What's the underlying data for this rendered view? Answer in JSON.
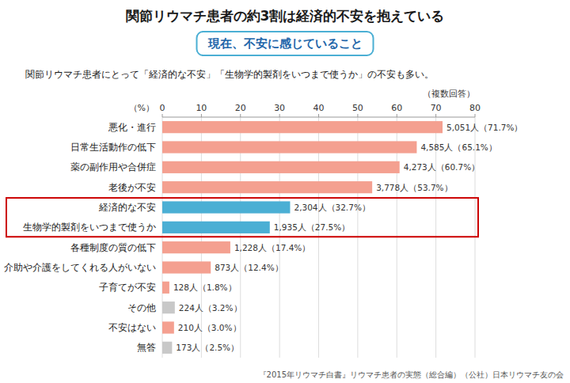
{
  "chart_data": {
    "type": "bar",
    "orientation": "horizontal",
    "title": "関節リウマチ患者の約3割は経済的不安を抱えている",
    "subtitle": "現在、不安に感じていること",
    "annotations": [
      "関節リウマチ患者にとって「経済的な不安」「生物学的製剤をいつまで使うか」の不安も多い。",
      "（複数回答）",
      "『2015年リウマチ白書』リウマチ患者の実態（総合編）（公社）日本リウマチ友の会"
    ],
    "xlabel": "（%）",
    "categories": [
      "悪化・進行",
      "日常生活動作の低下",
      "薬の副作用や合併症",
      "老後が不安",
      "経済的な不安",
      "生物学的製剤をいつまで使うか",
      "各種制度の質の低下",
      "介助や介護をしてくれる人がいない",
      "子育てが不安",
      "その他",
      "不安はない",
      "無答"
    ],
    "values": [
      71.7,
      65.1,
      60.7,
      53.7,
      32.7,
      27.5,
      17.4,
      12.4,
      1.8,
      3.2,
      3.0,
      2.5
    ],
    "value_labels": [
      "5,051人（71.7%）",
      "4,585人（65.1%）",
      "4,273人（60.7%）",
      "3,778人（53.7%）",
      "2,304人（32.7%）",
      "1,935人（27.5%）",
      "1,228人（17.4%）",
      "873人（12.4%）",
      "128人（1.8%）",
      "224人（3.2%）",
      "210人（3.0%）",
      "173人（2.5%）"
    ],
    "data_labels": true,
    "colors": [
      "#F4A090",
      "#F4A090",
      "#F4A090",
      "#F4A090",
      "#4BAFD4",
      "#4BAFD4",
      "#F4A090",
      "#F4A090",
      "#F4A090",
      "#C8C8C8",
      "#F4A090",
      "#C8C8C8"
    ],
    "highlight": {
      "rows": [
        4,
        5
      ],
      "color": "#CC0000"
    },
    "xlim": [
      0,
      80
    ],
    "xticks": [
      0,
      10,
      20,
      30,
      40,
      50,
      60,
      70,
      80
    ],
    "grid": true
  }
}
